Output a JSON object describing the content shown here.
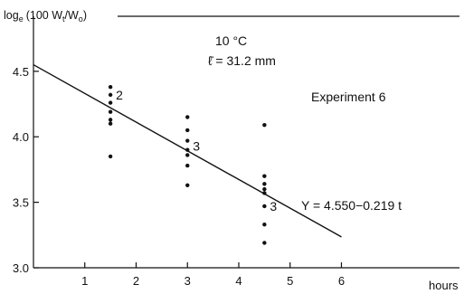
{
  "chart_data": {
    "type": "scatter",
    "ylabel": "log",
    "ylabel_sub": "e",
    "ylabel_rest": "(100 W",
    "ylabel_sub2": "t",
    "ylabel_rest2": "/W",
    "ylabel_sub3": "o",
    "ylabel_end": ")",
    "xlabel": "hours",
    "xlim": [
      0,
      8.3
    ],
    "ylim": [
      3.0,
      4.92
    ],
    "x_ticks": [
      1,
      2,
      3,
      4,
      5,
      6
    ],
    "y_ticks": [
      3.0,
      3.5,
      4.0,
      4.5
    ],
    "y_tick_labels": [
      "3.0",
      "3.5",
      "4.0",
      "4.5"
    ],
    "grid": false,
    "points": [
      {
        "x": 1.5,
        "y": 4.38
      },
      {
        "x": 1.5,
        "y": 4.32
      },
      {
        "x": 1.5,
        "y": 4.26
      },
      {
        "x": 1.5,
        "y": 4.19
      },
      {
        "x": 1.5,
        "y": 4.13
      },
      {
        "x": 1.5,
        "y": 4.1
      },
      {
        "x": 1.5,
        "y": 3.85
      },
      {
        "x": 3.0,
        "y": 4.15
      },
      {
        "x": 3.0,
        "y": 4.05
      },
      {
        "x": 3.0,
        "y": 3.97
      },
      {
        "x": 3.0,
        "y": 3.9
      },
      {
        "x": 3.0,
        "y": 3.86
      },
      {
        "x": 3.0,
        "y": 3.78
      },
      {
        "x": 3.0,
        "y": 3.63
      },
      {
        "x": 4.5,
        "y": 4.09
      },
      {
        "x": 4.5,
        "y": 3.7
      },
      {
        "x": 4.5,
        "y": 3.64
      },
      {
        "x": 4.5,
        "y": 3.6
      },
      {
        "x": 4.5,
        "y": 3.57
      },
      {
        "x": 4.5,
        "y": 3.47
      },
      {
        "x": 4.5,
        "y": 3.33
      },
      {
        "x": 4.5,
        "y": 3.19
      }
    ],
    "count_labels": [
      {
        "x": 1.5,
        "y": 4.32,
        "text": "2"
      },
      {
        "x": 3.0,
        "y": 3.93,
        "text": "3"
      },
      {
        "x": 4.5,
        "y": 3.47,
        "text": "3"
      }
    ],
    "fit_line": {
      "intercept": 4.55,
      "slope": -0.219,
      "x_start": 0,
      "x_end": 6
    },
    "annotations": {
      "temperature": "10 °C",
      "length": "ℓ̄ = 31.2 mm",
      "experiment": "Experiment 6",
      "equation": "Y = 4.550−0.219 t"
    }
  }
}
